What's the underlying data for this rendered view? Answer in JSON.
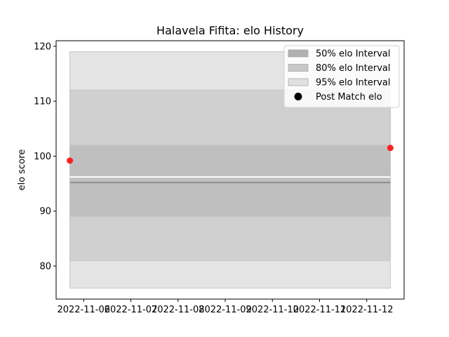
{
  "chart_data": {
    "type": "line",
    "title": "Halavela Fifita: elo History",
    "xlabel": "",
    "ylabel": "elo score",
    "x_ticks": [
      "2022-11-06",
      "2022-11-07",
      "2022-11-08",
      "2022-11-09",
      "2022-11-10",
      "2022-11-11",
      "2022-11-12"
    ],
    "y_ticks": [
      80,
      90,
      100,
      110,
      120
    ],
    "xlim": [
      "2022-11-05T10:00",
      "2022-11-12T19:00"
    ],
    "ylim": [
      74,
      121
    ],
    "x_start": "2022-11-05T17:00",
    "x_end": "2022-11-12T12:00",
    "bands": [
      {
        "name": "95% elo Interval",
        "low": 76,
        "high": 119,
        "color": "#e4e4e4"
      },
      {
        "name": "80% elo Interval",
        "low": 81,
        "high": 112,
        "color": "#d0d0d0"
      },
      {
        "name": "50% elo Interval",
        "low": 89,
        "high": 102,
        "color": "#bfbfbf"
      }
    ],
    "mean_line": {
      "value": 95.2,
      "color": "#808080"
    },
    "white_line": {
      "value": 96.2,
      "color": "#ffffff"
    },
    "points": [
      {
        "x": "2022-11-05T17:00",
        "y": 99.2
      },
      {
        "x": "2022-11-12T12:00",
        "y": 101.5
      }
    ],
    "point_color": "#ff2020",
    "legend": [
      {
        "label": "50% elo Interval",
        "kind": "patch",
        "color": "#b0b0b0"
      },
      {
        "label": "80% elo Interval",
        "kind": "patch",
        "color": "#c8c8c8"
      },
      {
        "label": "95% elo Interval",
        "kind": "patch",
        "color": "#e0e0e0"
      },
      {
        "label": "Post Match elo",
        "kind": "marker",
        "color": "#000000"
      }
    ],
    "legend_position": "top-right",
    "grid": false
  }
}
